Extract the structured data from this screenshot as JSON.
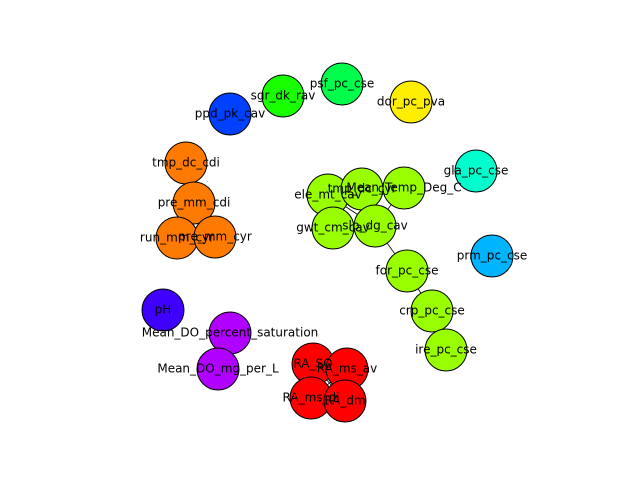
{
  "graph": {
    "nodes": [
      {
        "id": "psf_pc_cse",
        "label": "psf_pc_cse",
        "color": "#00ff4c"
      },
      {
        "id": "sgr_dk_rav",
        "label": "sgr_dk_rav",
        "color": "#1aff00"
      },
      {
        "id": "dor_pc_pva",
        "label": "dor_pc_pva",
        "color": "#ffee00"
      },
      {
        "id": "ppd_pk_cav",
        "label": "ppd_pk_cav",
        "color": "#0040ff"
      },
      {
        "id": "tmp_dc_cdi",
        "label": "tmp_dc_cdi",
        "color": "#ff7a00"
      },
      {
        "id": "pre_mm_cdi",
        "label": "pre_mm_cdi",
        "color": "#ff7a00"
      },
      {
        "id": "run_mm_cyr",
        "label": "run_mm_cyr",
        "color": "#ff7a00"
      },
      {
        "id": "pre_mm_cyr",
        "label": "pre_mm_cyr",
        "color": "#ff7a00"
      },
      {
        "id": "gla_pc_cse",
        "label": "gla_pc_cse",
        "color": "#00ffcc"
      },
      {
        "id": "ele_mt_cav",
        "label": "ele_mt_cav",
        "color": "#99ff00"
      },
      {
        "id": "tmp_dc_cyr",
        "label": "tmp_dc_cyr",
        "color": "#99ff00"
      },
      {
        "id": "Mean_Temp_Deg_C",
        "label": "Mean_Temp_Deg_C",
        "color": "#99ff00"
      },
      {
        "id": "gwt_cm_cav",
        "label": "gwt_cm_cav",
        "color": "#99ff00"
      },
      {
        "id": "slp_dg_cav",
        "label": "slp_dg_cav",
        "color": "#99ff00"
      },
      {
        "id": "prm_pc_cse",
        "label": "prm_pc_cse",
        "color": "#00b4ff"
      },
      {
        "id": "for_pc_cse",
        "label": "for_pc_cse",
        "color": "#99ff00"
      },
      {
        "id": "crp_pc_cse",
        "label": "crp_pc_cse",
        "color": "#99ff00"
      },
      {
        "id": "ire_pc_cse",
        "label": "ire_pc_cse",
        "color": "#99ff00"
      },
      {
        "id": "pH",
        "label": "pH",
        "color": "#4000ff"
      },
      {
        "id": "Mean_DO_percent_saturation",
        "label": "Mean_DO_percent_saturation",
        "color": "#b000ff"
      },
      {
        "id": "Mean_DO_mg_per_L",
        "label": "Mean_DO_mg_per_L",
        "color": "#b000ff"
      },
      {
        "id": "RA_SO",
        "label": "RA_SO",
        "color": "#ff0000"
      },
      {
        "id": "RA_ms_av",
        "label": "RA_ms_av",
        "color": "#ff0000"
      },
      {
        "id": "RA_ms_di",
        "label": "RA_ms_di",
        "color": "#ff0000"
      },
      {
        "id": "RA_dm",
        "label": "RA_dm",
        "color": "#ff0000"
      }
    ],
    "edges": [
      [
        "tmp_dc_cdi",
        "pre_mm_cdi"
      ],
      [
        "pre_mm_cdi",
        "run_mm_cyr"
      ],
      [
        "pre_mm_cdi",
        "pre_mm_cyr"
      ],
      [
        "run_mm_cyr",
        "pre_mm_cyr"
      ],
      [
        "ele_mt_cav",
        "tmp_dc_cyr"
      ],
      [
        "tmp_dc_cyr",
        "Mean_Temp_Deg_C"
      ],
      [
        "ele_mt_cav",
        "gwt_cm_cav"
      ],
      [
        "ele_mt_cav",
        "slp_dg_cav"
      ],
      [
        "tmp_dc_cyr",
        "slp_dg_cav"
      ],
      [
        "gwt_cm_cav",
        "slp_dg_cav"
      ],
      [
        "Mean_Temp_Deg_C",
        "slp_dg_cav"
      ],
      [
        "slp_dg_cav",
        "for_pc_cse"
      ],
      [
        "for_pc_cse",
        "crp_pc_cse"
      ],
      [
        "crp_pc_cse",
        "ire_pc_cse"
      ],
      [
        "Mean_DO_percent_saturation",
        "Mean_DO_mg_per_L"
      ],
      [
        "RA_SO",
        "RA_ms_av"
      ],
      [
        "RA_SO",
        "RA_ms_di"
      ],
      [
        "RA_ms_av",
        "RA_dm"
      ],
      [
        "RA_ms_di",
        "RA_dm"
      ],
      [
        "RA_SO",
        "RA_dm"
      ],
      [
        "RA_ms_av",
        "RA_ms_di"
      ]
    ]
  }
}
